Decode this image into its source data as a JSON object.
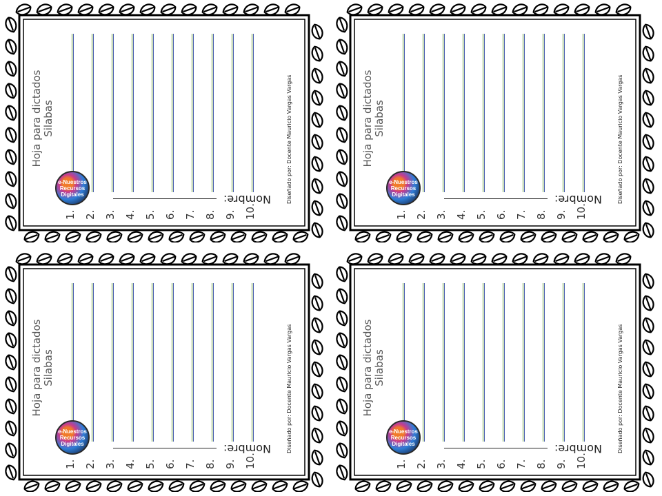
{
  "worksheet": {
    "title_line1": "Hoja para dictados",
    "title_line2": "Silabas",
    "line_numbers": [
      "1.",
      "2.",
      "3.",
      "4.",
      "5.",
      "6.",
      "7.",
      "8.",
      "9.",
      "10."
    ],
    "name_label": "Nombre:",
    "credit": "Diseñado por: Docente Mauricio Vargas Vargas",
    "logo_text": [
      "e-Nuestros",
      "Recursos",
      "Digitales"
    ]
  },
  "colors": {
    "rule_top": "#6a9e3c",
    "rule_bottom": "#4a5fb0",
    "border": "#000000"
  }
}
